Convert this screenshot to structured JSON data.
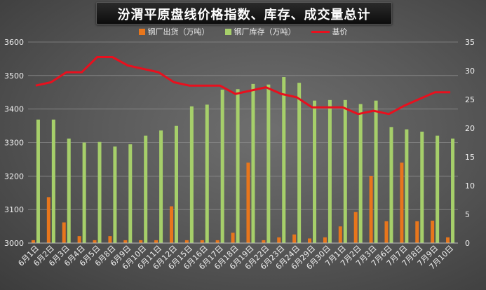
{
  "chart_data": {
    "type": "bar",
    "title": "汾渭平原盘线价格指数、库存、成交量总计",
    "categories": [
      "6月1日",
      "6月2日",
      "6月3日",
      "6月4日",
      "6月5日",
      "6月8日",
      "6月9日",
      "6月10日",
      "6月11日",
      "6月12日",
      "6月15日",
      "6月16日",
      "6月17日",
      "6月18日",
      "6月19日",
      "6月22日",
      "6月23日",
      "6月24日",
      "6月29日",
      "6月30日",
      "7月1日",
      "7月2日",
      "7月3日",
      "7月6日",
      "7月7日",
      "7月8日",
      "7月9日",
      "7月10日"
    ],
    "left_axis": {
      "min": 3000,
      "max": 3600,
      "ticks": [
        3000,
        3100,
        3200,
        3300,
        3400,
        3500,
        3600
      ]
    },
    "right_axis": {
      "min": 0,
      "max": 35,
      "ticks": [
        0,
        5,
        10,
        15,
        20,
        25,
        30,
        35
      ]
    },
    "series": [
      {
        "name": "钢厂出货（万吨）",
        "kind": "bar",
        "axis": "right",
        "color": "#e8761c",
        "values": [
          0.5,
          8,
          3.6,
          1.2,
          0.5,
          1.2,
          0.5,
          0.5,
          0.5,
          6.4,
          0.5,
          0.5,
          0.5,
          1.8,
          14,
          0.5,
          1,
          1.5,
          0.8,
          1,
          2.9,
          5.4,
          11.7,
          3.8,
          14,
          3.8,
          3.9,
          1
        ]
      },
      {
        "name": "钢厂库存（万吨）",
        "kind": "bar",
        "axis": "right",
        "color": "#a6cf6a",
        "values": [
          21.5,
          21.5,
          18.2,
          17.5,
          17.6,
          16.8,
          17.2,
          18.7,
          19.6,
          20.4,
          23.8,
          24.1,
          26.7,
          26.8,
          27.7,
          27.6,
          28.9,
          27.9,
          24.8,
          24.9,
          24.9,
          24.2,
          24.8,
          20.2,
          19.8,
          19.4,
          18.7,
          18.2
        ]
      },
      {
        "name": "基价",
        "kind": "line",
        "axis": "left",
        "color": "#e8101e",
        "values": [
          3470,
          3480,
          3510,
          3510,
          3555,
          3555,
          3530,
          3520,
          3510,
          3480,
          3470,
          3470,
          3470,
          3445,
          3455,
          3465,
          3445,
          3435,
          3405,
          3405,
          3405,
          3385,
          3395,
          3385,
          3410,
          3430,
          3450,
          3450
        ]
      }
    ],
    "legend_position": "top-center",
    "grid": true
  }
}
